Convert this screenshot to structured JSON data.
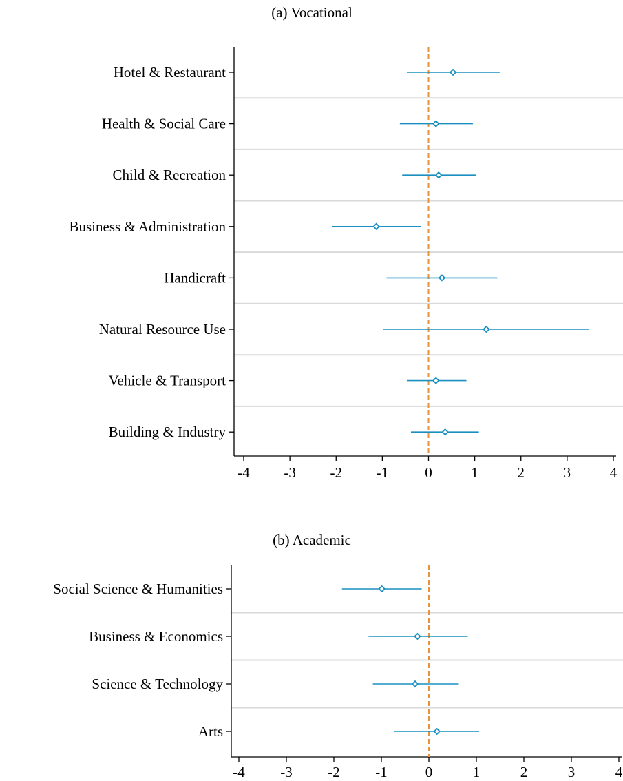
{
  "colors": {
    "estimate": "#1a8fc0",
    "reference_line": "#e8923a",
    "separator": "#d9d9d9",
    "axis": "#000000"
  },
  "chart_data": [
    {
      "type": "scatter",
      "title": "(a) Vocational",
      "xlabel": "",
      "ylabel": "",
      "xlim": [
        -4,
        4
      ],
      "xticks": [
        "-4",
        "-3",
        "-2",
        "-1",
        "0",
        "1",
        "2",
        "3",
        "4"
      ],
      "reference_x": 0,
      "grid": false,
      "marker": "diamond",
      "categories": [
        "Hotel & Restaurant",
        "Health & Social Care",
        "Child & Recreation",
        "Business & Administration",
        "Handicraft",
        "Natural Resource Use",
        "Vehicle & Transport",
        "Building & Industry"
      ],
      "estimates": [
        0.53,
        0.16,
        0.22,
        -1.13,
        0.29,
        1.25,
        0.16,
        0.36
      ],
      "ci_low": [
        -0.47,
        -0.62,
        -0.57,
        -2.08,
        -0.91,
        -0.98,
        -0.47,
        -0.38
      ],
      "ci_high": [
        1.54,
        0.96,
        1.02,
        -0.17,
        1.49,
        3.48,
        0.82,
        1.09
      ]
    },
    {
      "type": "scatter",
      "title": "(b) Academic",
      "xlabel": "",
      "ylabel": "",
      "xlim": [
        -4,
        4
      ],
      "xticks": [
        "-4",
        "-3",
        "-2",
        "-1",
        "0",
        "1",
        "2",
        "3",
        "4"
      ],
      "reference_x": 0,
      "grid": false,
      "marker": "diamond",
      "categories": [
        "Social Science & Humanities",
        "Business & Economics",
        "Science & Technology",
        "Arts"
      ],
      "estimates": [
        -0.99,
        -0.24,
        -0.29,
        0.17
      ],
      "ci_low": [
        -1.83,
        -1.27,
        -1.18,
        -0.73
      ],
      "ci_high": [
        -0.15,
        0.82,
        0.63,
        1.06
      ]
    }
  ]
}
